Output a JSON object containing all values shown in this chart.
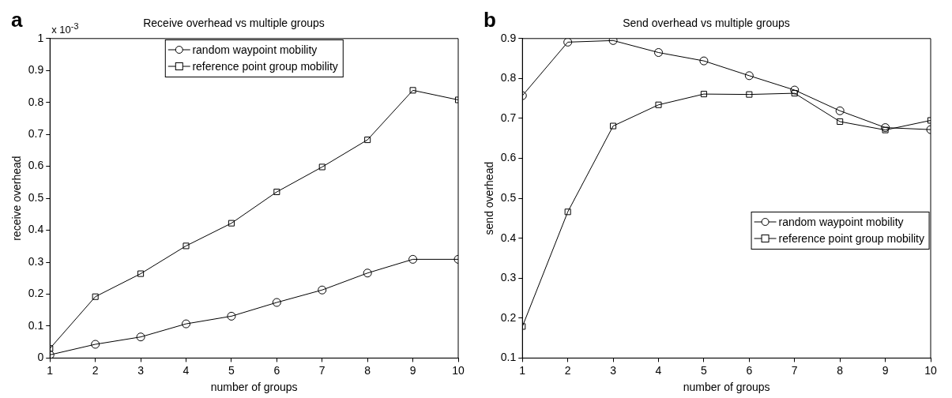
{
  "chart_data": [
    {
      "type": "line",
      "title": "Receive overhead vs multiple groups",
      "xlabel": "number of groups",
      "ylabel": "receive overhead",
      "annotations": [
        "a",
        "x 10$^{-3}$"
      ],
      "x": [
        1,
        2,
        3,
        4,
        5,
        6,
        7,
        8,
        9,
        10
      ],
      "xlim": [
        1,
        10
      ],
      "xticks": [
        1,
        2,
        3,
        4,
        5,
        6,
        7,
        8,
        9,
        10
      ],
      "ylim": [
        0,
        1
      ],
      "yticks": [
        0,
        0.1,
        0.2,
        0.3,
        0.4,
        0.5,
        0.6,
        0.7,
        0.8,
        0.9,
        1
      ],
      "grid": false,
      "legend": "top",
      "line_style": "solid",
      "series": [
        {
          "name": "random waypoint mobility",
          "color": "#000000",
          "marker": "circle",
          "values": [
            0.01,
            0.043,
            0.066,
            0.107,
            0.131,
            0.174,
            0.213,
            0.266,
            0.309,
            0.309
          ]
        },
        {
          "name": "reference point group mobility",
          "color": "#000000",
          "marker": "square",
          "values": [
            0.03,
            0.192,
            0.264,
            0.351,
            0.422,
            0.52,
            0.598,
            0.683,
            0.838,
            0.808
          ]
        }
      ]
    },
    {
      "type": "line",
      "title": "Send overhead vs multiple groups",
      "xlabel": "number of groups",
      "ylabel": "send overhead",
      "annotations": [
        "b"
      ],
      "x": [
        1,
        2,
        3,
        4,
        5,
        6,
        7,
        8,
        9,
        10
      ],
      "xlim": [
        1,
        10
      ],
      "xticks": [
        1,
        2,
        3,
        4,
        5,
        6,
        7,
        8,
        9,
        10
      ],
      "ylim": [
        0.1,
        0.9
      ],
      "yticks": [
        0.1,
        0.2,
        0.3,
        0.4,
        0.5,
        0.6,
        0.7,
        0.8,
        0.9
      ],
      "grid": false,
      "legend": "right",
      "line_style": "solid",
      "series": [
        {
          "name": "random waypoint mobility",
          "color": "#000000",
          "marker": "circle",
          "values": [
            0.757,
            0.891,
            0.895,
            0.865,
            0.844,
            0.807,
            0.771,
            0.719,
            0.677,
            0.672
          ]
        },
        {
          "name": "reference point group mobility",
          "color": "#000000",
          "marker": "square",
          "values": [
            0.179,
            0.466,
            0.681,
            0.734,
            0.761,
            0.76,
            0.763,
            0.692,
            0.671,
            0.695
          ]
        }
      ]
    }
  ]
}
